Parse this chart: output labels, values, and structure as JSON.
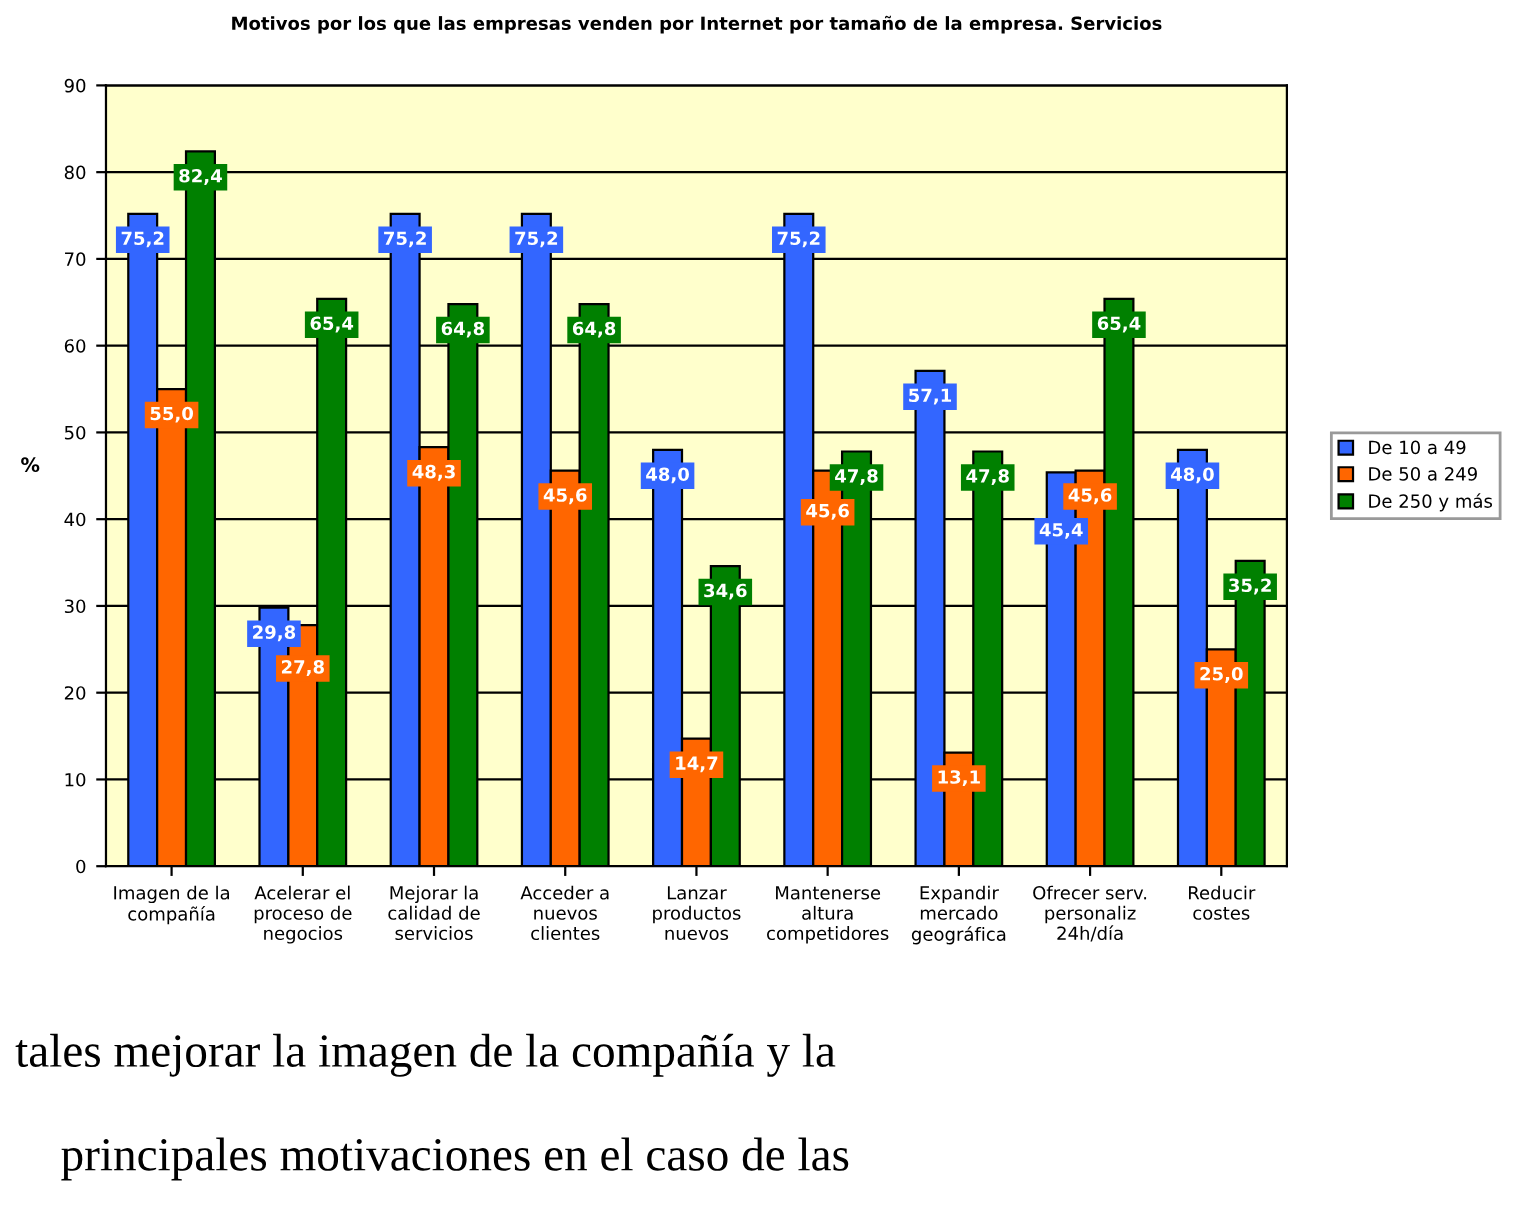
{
  "chart_data": {
    "type": "bar",
    "title": "Motivos por los que las empresas venden por Internet por tamaño de la empresa. Servicios",
    "ylabel": "%",
    "categories": [
      "Imagen de la\ncompañía",
      "Acelerar el\nproceso de\nnegocios",
      "Mejorar la\ncalidad de\nservicios",
      "Acceder a\nnuevos\nclientes",
      "Lanzar\nproductos\nnuevos",
      "Mantenerse\naltura\ncompetidores",
      "Expandir\nmercado\ngeográfica",
      "Ofrecer serv.\npersonaliz\n24h/día",
      "Reducir\ncostes"
    ],
    "series": [
      {
        "name": "De 10 a 49",
        "color": "#3366ff",
        "values": [
          75.2,
          29.8,
          75.2,
          75.2,
          48.0,
          75.2,
          57.1,
          45.4,
          48.0
        ],
        "value_labels": [
          "75,2",
          "29,8",
          "75,2",
          "75,2",
          "48,0",
          "75,2",
          "57,1",
          "45,4",
          "48,0"
        ]
      },
      {
        "name": "De 50 a 249",
        "color": "#ff6600",
        "values": [
          55.0,
          27.8,
          48.3,
          45.6,
          14.7,
          45.6,
          13.1,
          45.6,
          25.0
        ],
        "value_labels": [
          "55,0",
          "27,8",
          "48,3",
          "45,6",
          "14,7",
          "45,6",
          "13,1",
          "45,6",
          "25,0"
        ]
      },
      {
        "name": "De 250 y más",
        "color": "#008000",
        "values": [
          82.4,
          65.4,
          64.8,
          64.8,
          34.6,
          47.8,
          47.8,
          65.4,
          35.2
        ],
        "value_labels": [
          "82,4",
          "65,4",
          "64,8",
          "64,8",
          "34,6",
          "47,8",
          "47,8",
          "65,4",
          "35,2"
        ]
      }
    ],
    "ylim": [
      0,
      90
    ],
    "yticks": [
      0,
      10,
      20,
      30,
      40,
      50,
      60,
      70,
      80,
      90
    ],
    "grid": "y",
    "legend": "right",
    "annotations": [
      "tales mejorar la imagen de la compañía y la",
      "principales motivaciones en el caso de las"
    ]
  }
}
